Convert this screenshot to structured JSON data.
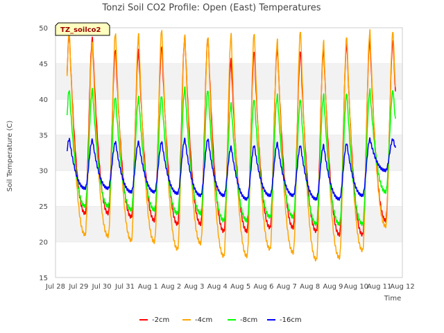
{
  "chart_data": {
    "type": "line",
    "title": "Tonzi Soil CO2 Profile: Open (East) Temperatures",
    "xlabel": "Time",
    "ylabel": "Soil Temperature (C)",
    "ylim": [
      15,
      50
    ],
    "yticks": [
      "15",
      "20",
      "25",
      "30",
      "35",
      "40",
      "45",
      "50"
    ],
    "xlim": [
      0,
      15
    ],
    "xtick_labels": [
      "Jul 28",
      "Jul 29",
      "Jul 30",
      "Jul 31",
      "Aug 1",
      "Aug 2",
      "Aug 3",
      "Aug 4",
      "Aug 5",
      "Aug 6",
      "Aug 7",
      "Aug 8",
      "Aug 9",
      "Aug 10",
      "Aug 11",
      "Aug 12"
    ],
    "x_unit": "days since Jul 28 00:00",
    "annotation": "TZ_soilco2",
    "legend_position": "bottom-center",
    "series": [
      {
        "name": "-2cm",
        "color": "#ff0000",
        "daily_min": [
          23.5,
          24.0,
          24.0,
          23.5,
          23.0,
          22.5,
          22.5,
          21.5,
          21.5,
          22.0,
          22.0,
          21.5,
          21.0,
          21.0,
          23.0
        ],
        "daily_max": [
          49.0,
          48.5,
          47.0,
          46.8,
          47.5,
          48.7,
          48.7,
          45.5,
          46.8,
          47.3,
          46.8,
          47.0,
          47.8,
          48.3
        ]
      },
      {
        "name": "-4cm",
        "color": "#ffa500",
        "daily_min": [
          20.5,
          21.0,
          20.8,
          20.2,
          20.0,
          19.0,
          19.8,
          18.0,
          18.0,
          19.0,
          18.5,
          17.5,
          17.8,
          18.8,
          22.2
        ],
        "daily_max": [
          49.5,
          47.8,
          49.3,
          49.0,
          49.8,
          48.8,
          48.8,
          49.0,
          49.3,
          48.2,
          49.6,
          48.0,
          48.8,
          49.5
        ]
      },
      {
        "name": "-8cm",
        "color": "#00ff00",
        "daily_min": [
          24.5,
          25.0,
          25.0,
          24.5,
          24.5,
          24.0,
          24.0,
          23.0,
          23.0,
          23.5,
          23.5,
          22.5,
          22.5,
          22.5,
          27.0
        ],
        "daily_max": [
          41.3,
          41.3,
          40.3,
          40.2,
          40.5,
          41.5,
          41.3,
          39.3,
          40.0,
          40.5,
          40.0,
          40.5,
          40.8,
          41.2
        ]
      },
      {
        "name": "-16cm",
        "color": "#0000ff",
        "daily_min": [
          27.0,
          27.5,
          27.5,
          27.0,
          27.0,
          26.8,
          26.5,
          26.5,
          26.0,
          26.5,
          26.5,
          26.0,
          26.0,
          26.5,
          30.0
        ],
        "daily_max": [
          34.4,
          34.3,
          34.0,
          34.0,
          34.0,
          34.4,
          34.4,
          33.3,
          33.5,
          33.8,
          33.5,
          33.5,
          33.8,
          34.4
        ]
      }
    ]
  }
}
